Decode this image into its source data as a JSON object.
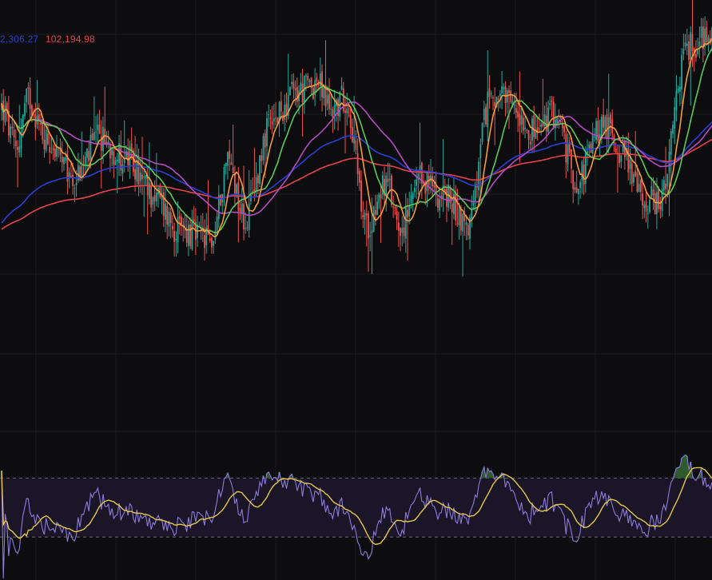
{
  "legend": {
    "items": [
      {
        "text": "2,306.27",
        "color": "#2a3fd6"
      },
      {
        "text": "102,194.98",
        "color": "#e8434a"
      }
    ]
  },
  "colors": {
    "background": "#0d0d0f",
    "grid": "#1b1b1f",
    "candle_up": "#26a69a",
    "candle_down": "#ef5350",
    "ma_fast": "#f59b3a",
    "ma_mid": "#5cc95a",
    "ma_slow": "#b44bc4",
    "ma_longer": "#2a3fd6",
    "ma_longest": "#e8434a",
    "rsi_line": "#8b7bdc",
    "rsi_ma": "#e8c547",
    "rsi_band": "#1a1628",
    "rsi_level_lines": "#6a6a78",
    "rsi_overbought_fill": "#2e5a2e"
  },
  "chart_data": {
    "type": "line",
    "candles": {
      "count": 400,
      "anchors": [
        [
          0,
          80
        ],
        [
          8,
          72
        ],
        [
          15,
          82
        ],
        [
          25,
          74
        ],
        [
          40,
          66
        ],
        [
          55,
          74
        ],
        [
          70,
          70
        ],
        [
          85,
          63
        ],
        [
          100,
          56
        ],
        [
          118,
          54
        ],
        [
          127,
          70
        ],
        [
          137,
          58
        ],
        [
          150,
          76
        ],
        [
          165,
          83
        ],
        [
          177,
          85
        ],
        [
          185,
          80
        ],
        [
          193,
          82
        ],
        [
          205,
          57
        ],
        [
          215,
          65
        ],
        [
          225,
          57
        ],
        [
          236,
          66
        ],
        [
          248,
          63
        ],
        [
          262,
          57
        ],
        [
          275,
          83
        ],
        [
          288,
          80
        ],
        [
          300,
          75
        ],
        [
          310,
          79
        ],
        [
          323,
          66
        ],
        [
          338,
          77
        ],
        [
          350,
          71
        ],
        [
          360,
          62
        ],
        [
          370,
          62
        ],
        [
          385,
          92
        ],
        [
          399,
          95
        ]
      ]
    },
    "overlays": {
      "ma_fast": {
        "period": 9
      },
      "ma_mid": {
        "period": 20
      },
      "ma_slow": {
        "period": 50
      },
      "ma_longer": {
        "period": 100,
        "start_level": 57
      },
      "ma_longest": {
        "period": 200,
        "start_level": 56
      }
    },
    "rsi": {
      "period": 14,
      "ma_period": 14,
      "levels": [
        70,
        30
      ],
      "range": [
        0,
        100
      ]
    }
  }
}
